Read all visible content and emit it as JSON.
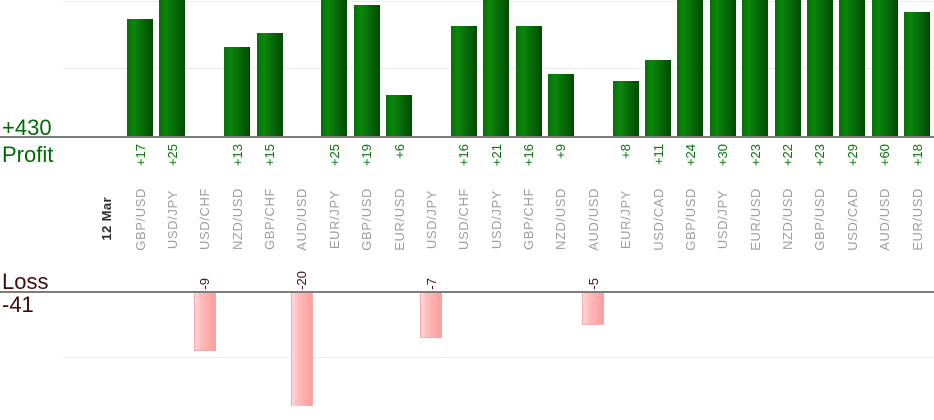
{
  "chart": {
    "date_label": "12 Mar",
    "profit": {
      "total_label": "+430",
      "axis_title": "Profit"
    },
    "loss": {
      "axis_title": "Loss",
      "total_label": "-41"
    }
  },
  "chart_data": {
    "type": "bar",
    "orientation": "vertical",
    "x_group_label": "12 Mar",
    "categories": [
      "GBP/USD",
      "USD/JPY",
      "USD/CHF",
      "NZD/USD",
      "GBP/CHF",
      "AUD/USD",
      "EUR/JPY",
      "GBP/USD",
      "EUR/USD",
      "USD/JPY",
      "USD/CHF",
      "USD/JPY",
      "GBP/CHF",
      "NZD/USD",
      "AUD/USD",
      "EUR/JPY",
      "USD/CAD",
      "GBP/USD",
      "USD/JPY",
      "EUR/USD",
      "NZD/USD",
      "GBP/USD",
      "USD/CAD",
      "AUD/USD",
      "EUR/USD"
    ],
    "series": [
      {
        "name": "Profit",
        "total": 430,
        "label_format": "+{v}",
        "values": [
          17,
          25,
          null,
          13,
          15,
          null,
          25,
          19,
          6,
          null,
          16,
          21,
          16,
          9,
          null,
          8,
          11,
          24,
          30,
          23,
          22,
          23,
          29,
          60,
          18
        ]
      },
      {
        "name": "Loss",
        "total": -41,
        "label_format": "{v}",
        "values": [
          null,
          null,
          -9,
          null,
          null,
          -20,
          null,
          null,
          null,
          -7,
          null,
          null,
          null,
          null,
          -5,
          null,
          null,
          null,
          null,
          null,
          null,
          null,
          null,
          null,
          null
        ]
      }
    ],
    "profit_gridline_values": [
      10,
      20
    ],
    "loss_gridline_values": [
      -10
    ],
    "layout": {
      "grid": true,
      "legend": false,
      "category_labels_rotated": true,
      "value_labels_rotated": true,
      "profit_bars_cropped_at_top": true
    }
  },
  "colors": {
    "background": "#ffffff",
    "profit_text": "#006b00",
    "profit_value_text": "#077607",
    "loss_text": "#430a0a",
    "loss_value_text": "#4d0d0d",
    "category_text": "#9e9e9e",
    "date_text": "#2e2e2e",
    "axis_line": "#7d7d7d",
    "gridline": "#ececec",
    "profit_bar_edge": "#0a6e0a",
    "profit_bar_light": "#0c870c",
    "profit_bar_dark": "#014a01",
    "loss_bar_light": "#ffd8d8",
    "loss_bar_mid": "#ffbcbc",
    "loss_bar_dark": "#fb9d9d",
    "loss_bar_border": "#f5a9a9"
  }
}
